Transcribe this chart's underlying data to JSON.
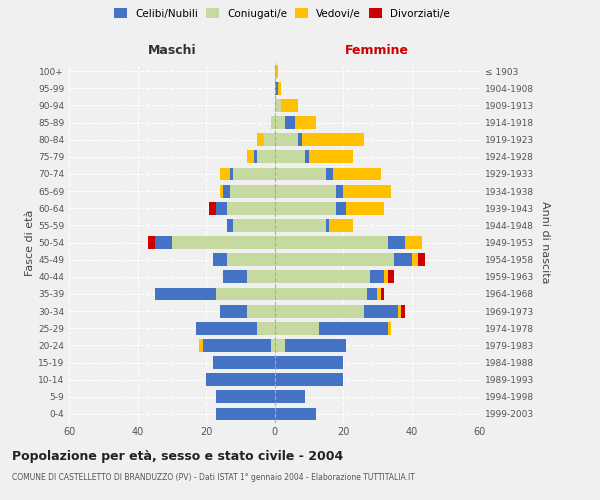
{
  "age_groups": [
    "0-4",
    "5-9",
    "10-14",
    "15-19",
    "20-24",
    "25-29",
    "30-34",
    "35-39",
    "40-44",
    "45-49",
    "50-54",
    "55-59",
    "60-64",
    "65-69",
    "70-74",
    "75-79",
    "80-84",
    "85-89",
    "90-94",
    "95-99",
    "100+"
  ],
  "birth_years": [
    "1999-2003",
    "1994-1998",
    "1989-1993",
    "1984-1988",
    "1979-1983",
    "1974-1978",
    "1969-1973",
    "1964-1968",
    "1959-1963",
    "1954-1958",
    "1949-1953",
    "1944-1948",
    "1939-1943",
    "1934-1938",
    "1929-1933",
    "1924-1928",
    "1919-1923",
    "1914-1918",
    "1909-1913",
    "1904-1908",
    "≤ 1903"
  ],
  "colors": {
    "celibi": "#4472c4",
    "coniugati": "#c5d9a0",
    "vedovi": "#ffc000",
    "divorziati": "#cc0000"
  },
  "maschi": {
    "celibi": [
      17,
      17,
      20,
      18,
      20,
      18,
      8,
      18,
      7,
      4,
      5,
      2,
      3,
      2,
      1,
      1,
      0,
      0,
      0,
      0,
      0
    ],
    "coniugati": [
      0,
      0,
      0,
      0,
      1,
      5,
      8,
      17,
      8,
      14,
      30,
      12,
      14,
      13,
      12,
      5,
      3,
      1,
      0,
      0,
      0
    ],
    "vedovi": [
      0,
      0,
      0,
      0,
      1,
      0,
      0,
      0,
      0,
      0,
      0,
      0,
      0,
      1,
      3,
      2,
      2,
      0,
      0,
      0,
      0
    ],
    "divorziati": [
      0,
      0,
      0,
      0,
      0,
      0,
      0,
      0,
      0,
      0,
      2,
      0,
      2,
      0,
      0,
      0,
      0,
      0,
      0,
      0,
      0
    ]
  },
  "femmine": {
    "celibi": [
      12,
      9,
      20,
      20,
      18,
      20,
      10,
      3,
      4,
      5,
      5,
      1,
      3,
      2,
      2,
      1,
      1,
      3,
      0,
      1,
      0
    ],
    "coniugati": [
      0,
      0,
      0,
      0,
      3,
      13,
      26,
      27,
      28,
      35,
      33,
      15,
      18,
      18,
      15,
      9,
      7,
      3,
      2,
      0,
      0
    ],
    "vedovi": [
      0,
      0,
      0,
      0,
      0,
      1,
      1,
      1,
      1,
      2,
      5,
      7,
      11,
      14,
      14,
      13,
      18,
      6,
      5,
      1,
      1
    ],
    "divorziati": [
      0,
      0,
      0,
      0,
      0,
      0,
      1,
      1,
      2,
      2,
      0,
      0,
      0,
      0,
      0,
      0,
      0,
      0,
      0,
      0,
      0
    ]
  },
  "xlim": 60,
  "title": "Popolazione per età, sesso e stato civile - 2004",
  "subtitle": "COMUNE DI CASTELLETTO DI BRANDUZZO (PV) - Dati ISTAT 1° gennaio 2004 - Elaborazione TUTTITALIA.IT",
  "ylabel_left": "Fasce di età",
  "ylabel_right": "Anni di nascita",
  "xlabel_maschi": "Maschi",
  "xlabel_femmine": "Femmine",
  "legend_labels": [
    "Celibi/Nubili",
    "Coniugati/e",
    "Vedovi/e",
    "Divorziati/e"
  ],
  "bg_color": "#f0f0f0",
  "bar_height": 0.75
}
